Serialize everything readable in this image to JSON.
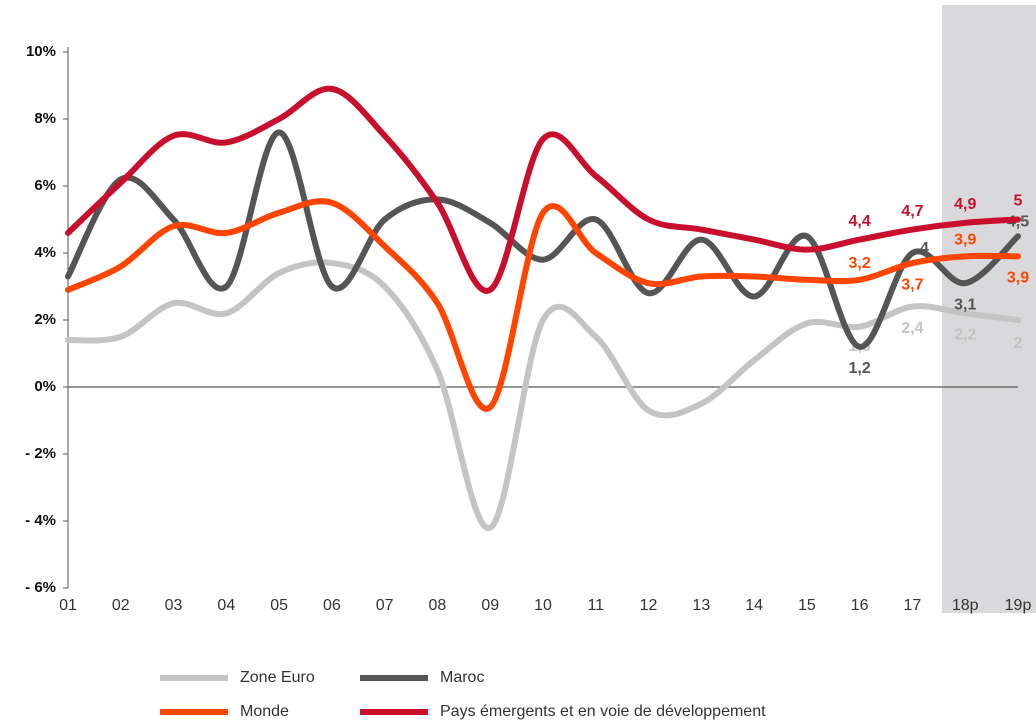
{
  "chart_data": {
    "type": "line",
    "categories": [
      "01",
      "02",
      "03",
      "04",
      "05",
      "06",
      "07",
      "08",
      "09",
      "10",
      "11",
      "12",
      "13",
      "14",
      "15",
      "16",
      "17",
      "18p",
      "19p"
    ],
    "ylim": [
      -6,
      10
    ],
    "yticks": [
      {
        "value": -6,
        "label": "- 6%"
      },
      {
        "value": -4,
        "label": "- 4%"
      },
      {
        "value": -2,
        "label": "- 2%"
      },
      {
        "value": 0,
        "label": "0%"
      },
      {
        "value": 2,
        "label": "2%"
      },
      {
        "value": 4,
        "label": "4%"
      },
      {
        "value": 6,
        "label": "6%"
      },
      {
        "value": 8,
        "label": "8%"
      },
      {
        "value": 10,
        "label": "10%"
      }
    ],
    "legend": "bottom",
    "series": [
      {
        "name": "Zone Euro",
        "color": "#c4c4c4",
        "values": [
          1.4,
          1.5,
          2.5,
          2.2,
          3.4,
          3.7,
          3.0,
          0.5,
          -4.2,
          2.0,
          1.5,
          -0.7,
          -0.5,
          0.8,
          1.9,
          1.8,
          2.4,
          2.2,
          2
        ],
        "value_labels": [
          null,
          null,
          null,
          null,
          null,
          null,
          null,
          null,
          null,
          null,
          null,
          null,
          null,
          null,
          null,
          "1,8",
          "2,4",
          "2,2",
          "2"
        ]
      },
      {
        "name": "Maroc",
        "color": "#555555",
        "values": [
          3.3,
          6.2,
          5.0,
          3.0,
          7.6,
          3.0,
          5.0,
          5.6,
          4.9,
          3.8,
          5.0,
          2.8,
          4.4,
          2.7,
          4.5,
          1.2,
          4,
          3.1,
          4.5
        ],
        "value_labels": [
          null,
          null,
          null,
          null,
          null,
          null,
          null,
          null,
          null,
          null,
          null,
          null,
          null,
          null,
          null,
          "1,2",
          "4",
          "3,1",
          "4,5"
        ]
      },
      {
        "name": "Monde",
        "color": "#ff4500",
        "values": [
          2.9,
          3.6,
          4.8,
          4.6,
          5.2,
          5.5,
          4.2,
          2.5,
          -0.6,
          5.2,
          4.0,
          3.1,
          3.3,
          3.3,
          3.2,
          3.2,
          3.7,
          3.9,
          3.9
        ],
        "value_labels": [
          null,
          null,
          null,
          null,
          null,
          null,
          null,
          null,
          null,
          null,
          null,
          null,
          null,
          null,
          null,
          "3,2",
          "3,7",
          "3,9",
          "3,9"
        ]
      },
      {
        "name": "Pays émergents et en voie de développement",
        "color": "#c8102e",
        "values": [
          4.6,
          6.1,
          7.5,
          7.3,
          8.0,
          8.9,
          7.5,
          5.5,
          2.9,
          7.4,
          6.3,
          5.0,
          4.7,
          4.4,
          4.1,
          4.4,
          4.7,
          4.9,
          5
        ],
        "value_labels": [
          null,
          null,
          null,
          null,
          null,
          null,
          null,
          null,
          null,
          null,
          null,
          null,
          null,
          null,
          null,
          "4,4",
          "4,7",
          "4,9",
          "5"
        ]
      }
    ]
  }
}
